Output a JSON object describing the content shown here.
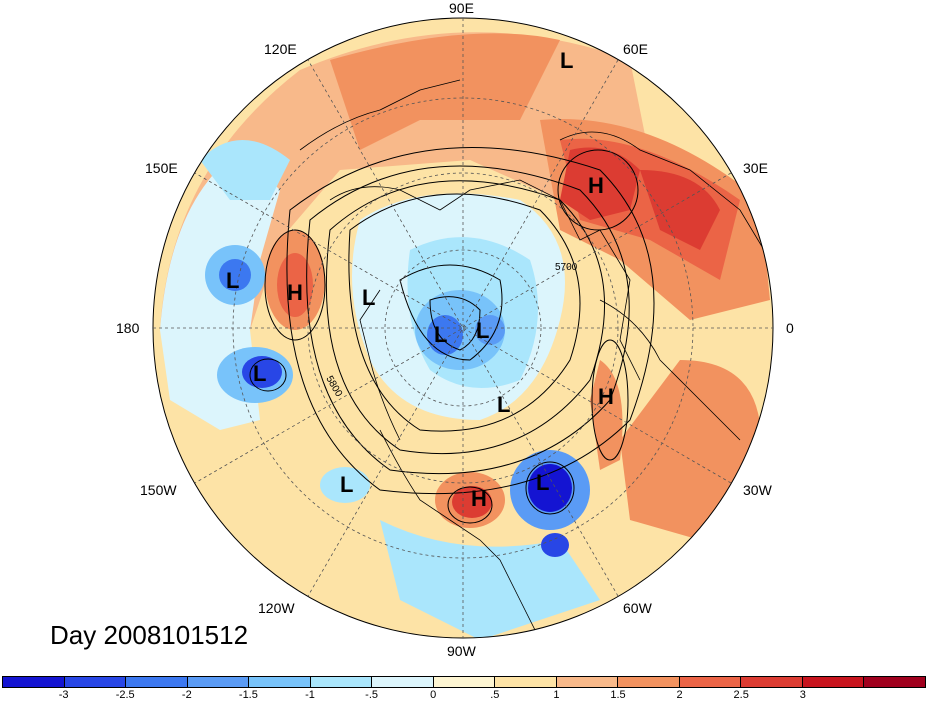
{
  "title": "Day 2008101512",
  "longitude_labels": {
    "top": "90E",
    "upper_right": "60E",
    "right_upper": "30E",
    "right": "0",
    "right_lower": "30W",
    "lower_right": "60W",
    "bottom": "90W",
    "lower_left": "120W",
    "left_lower": "150W",
    "left": "180",
    "left_upper": "150E",
    "upper_left": "120E"
  },
  "contour_labels": [
    "5700",
    "5800"
  ],
  "pressure_centers": {
    "low": "L",
    "high": "H"
  },
  "colorbar": {
    "colors": [
      "#1414d2",
      "#2846e6",
      "#3c78f0",
      "#5a9bf5",
      "#78c3fa",
      "#aae6fc",
      "#dcf5fc",
      "#fdf5d2",
      "#fde3a6",
      "#f8b98a",
      "#f2925f",
      "#eb6446",
      "#dc3c32",
      "#c8141e",
      "#a0001e"
    ],
    "tick_labels": [
      "-3",
      "-2.5",
      "-2",
      "-1.5",
      "-1",
      "-.5",
      "0",
      ".5",
      "1",
      "1.5",
      "2",
      "2.5",
      "3"
    ]
  }
}
